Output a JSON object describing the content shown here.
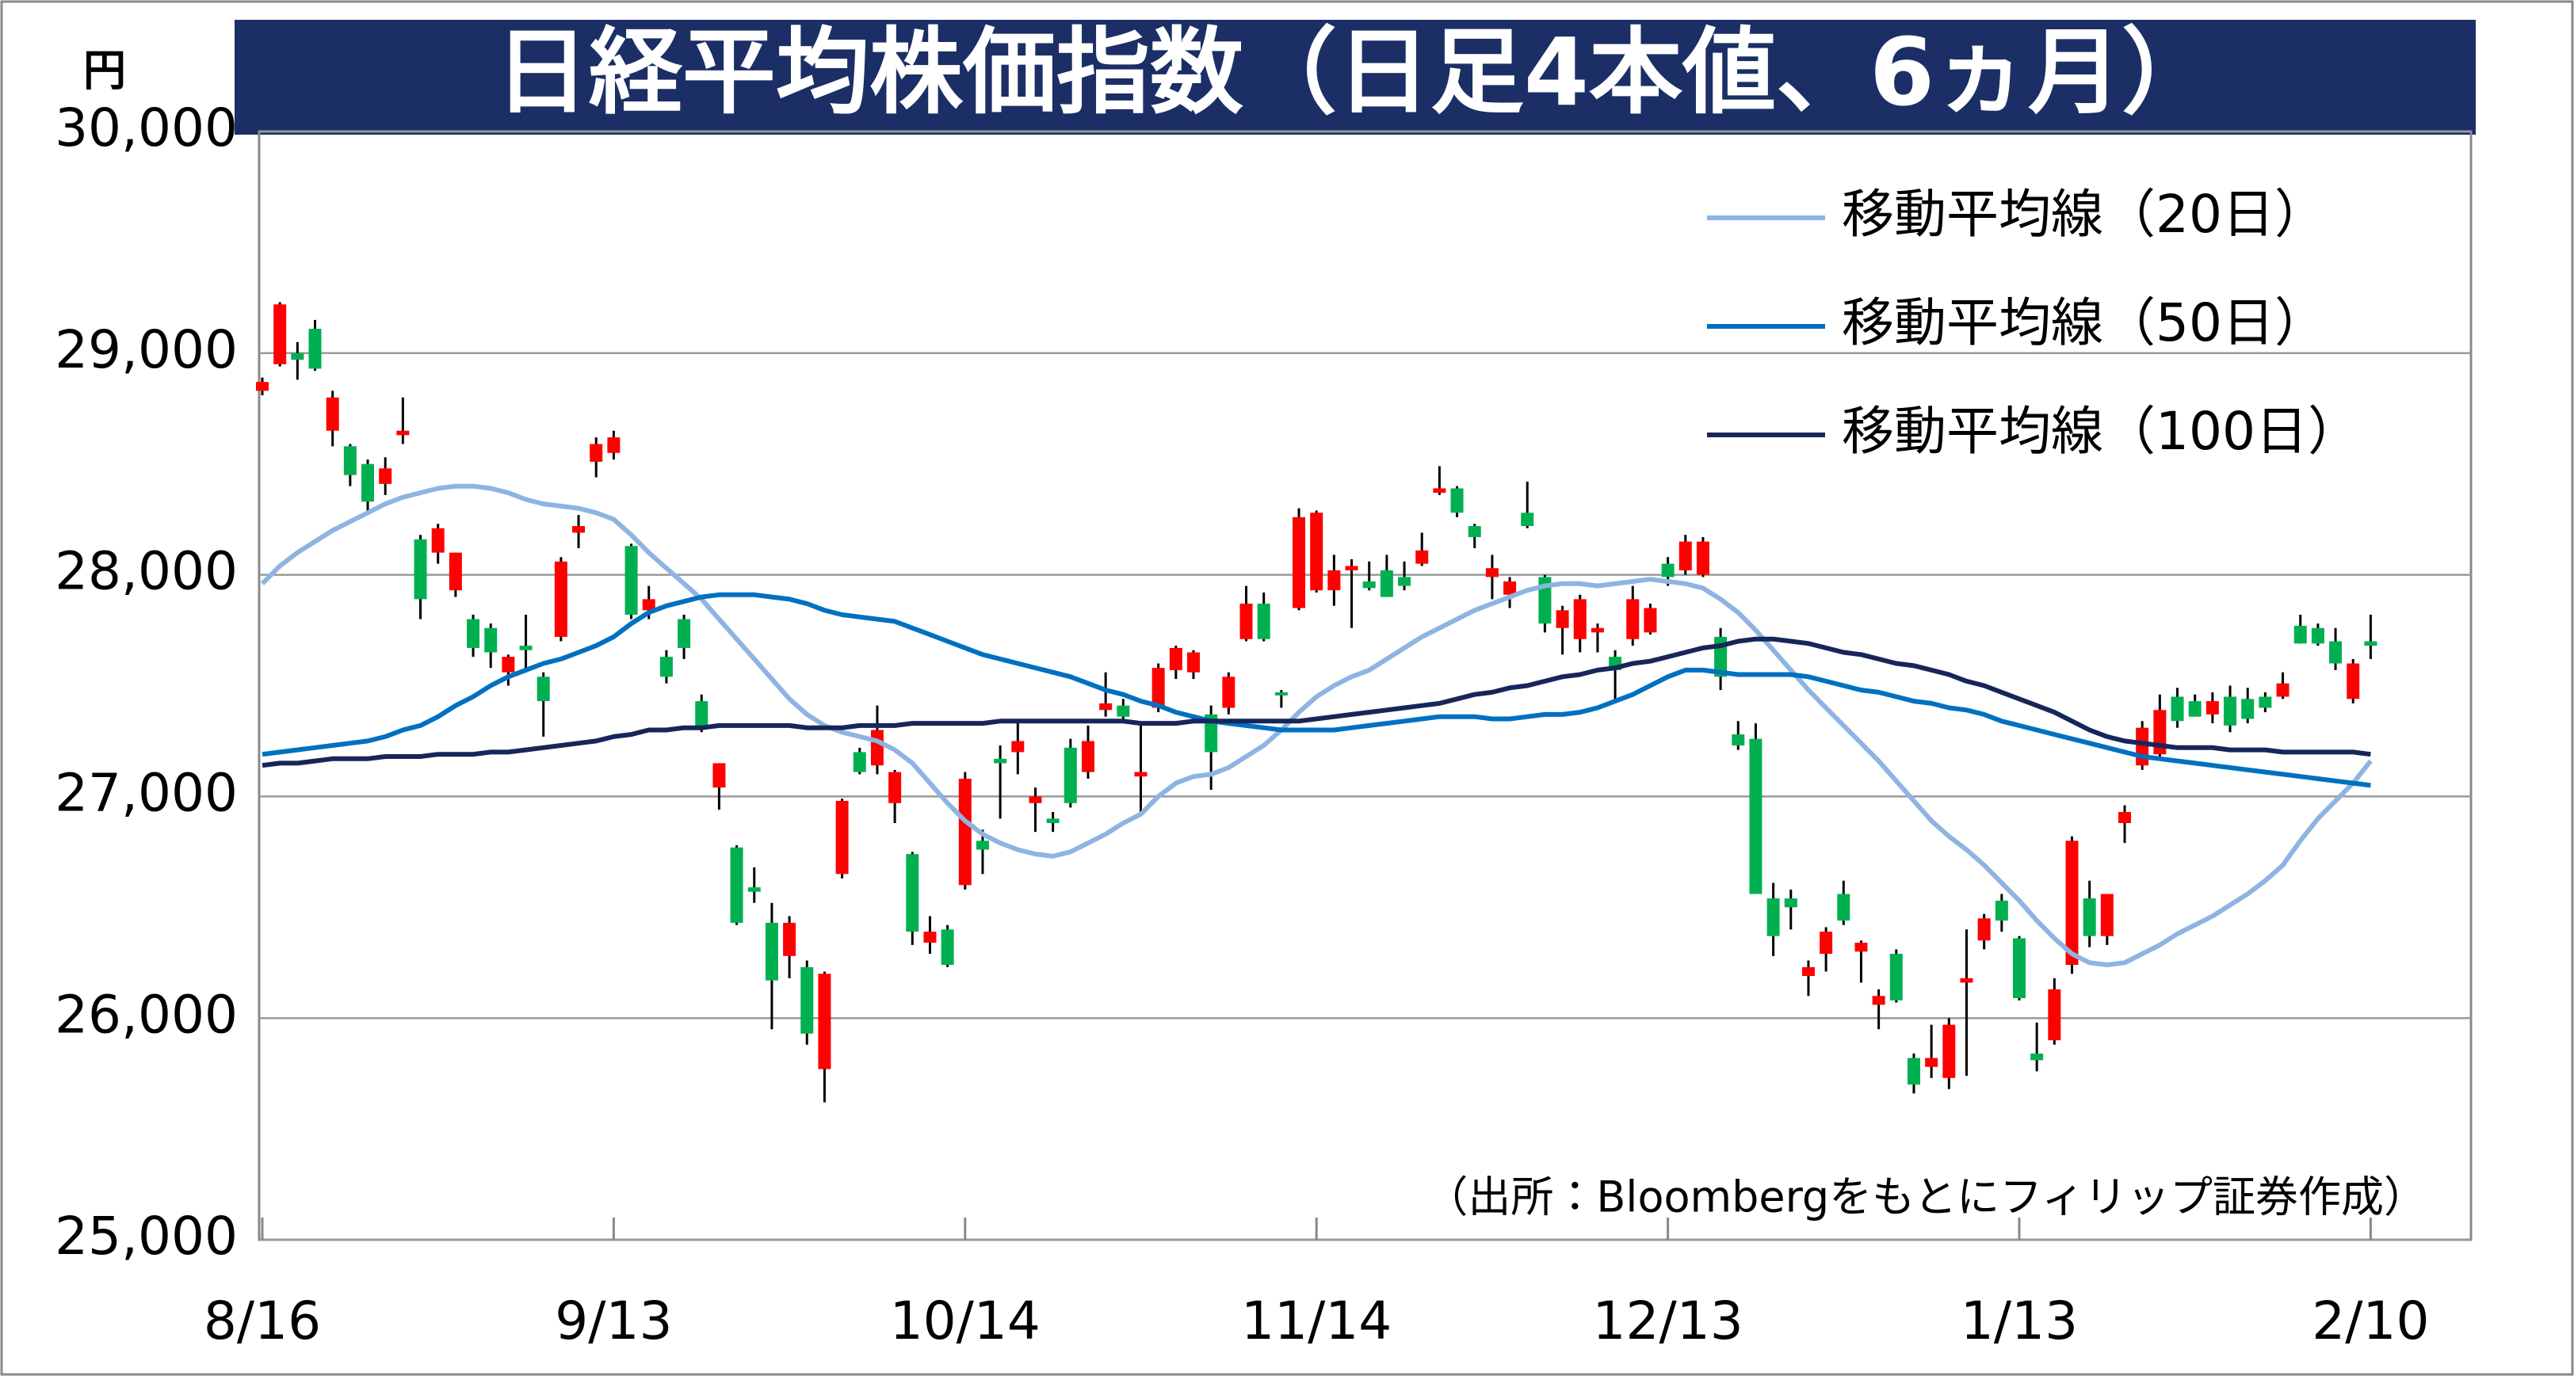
{
  "chart_data": {
    "type": "candlestick",
    "title": "日経平均株価指数（日足4本値、6ヵ月）",
    "y_unit": "円",
    "source": "（出所：Bloombergをもとにフィリップ証券作成）",
    "categories": [
      "8/16",
      null,
      null,
      null,
      null,
      null,
      null,
      null,
      null,
      null,
      null,
      null,
      null,
      null,
      null,
      null,
      null,
      null,
      null,
      null,
      "9/13",
      null,
      null,
      null,
      null,
      null,
      null,
      null,
      null,
      null,
      null,
      null,
      null,
      null,
      null,
      null,
      null,
      null,
      null,
      null,
      "10/14",
      null,
      null,
      null,
      null,
      null,
      null,
      null,
      null,
      null,
      null,
      null,
      null,
      null,
      null,
      null,
      null,
      null,
      null,
      null,
      "11/14",
      null,
      null,
      null,
      null,
      null,
      null,
      null,
      null,
      null,
      null,
      null,
      null,
      null,
      null,
      null,
      null,
      null,
      null,
      null,
      "12/13",
      null,
      null,
      null,
      null,
      null,
      null,
      null,
      null,
      null,
      null,
      null,
      null,
      null,
      null,
      null,
      null,
      null,
      null,
      null,
      "1/13",
      null,
      null,
      null,
      null,
      null,
      null,
      null,
      null,
      null,
      null,
      null,
      null,
      null,
      null,
      null,
      null,
      null,
      null,
      null,
      "2/10"
    ],
    "open": [
      28830,
      28950,
      29000,
      29110,
      28650,
      28580,
      28500,
      28410,
      28630,
      28160,
      28100,
      27930,
      27800,
      27760,
      27560,
      27680,
      27540,
      27720,
      28190,
      28510,
      28550,
      28130,
      27840,
      27630,
      27800,
      27430,
      27040,
      26770,
      26590,
      26430,
      26280,
      26230,
      25770,
      26650,
      27200,
      27140,
      26970,
      26740,
      26340,
      26400,
      26600,
      26800,
      27170,
      27200,
      26970,
      26900,
      27220,
      27110,
      27390,
      27410,
      27090,
      27400,
      27570,
      27560,
      27370,
      27400,
      27710,
      27870,
      27470,
      27850,
      27930,
      27930,
      28020,
      27970,
      28020,
      27990,
      28050,
      28370,
      28390,
      28220,
      27990,
      27910,
      28280,
      27990,
      27760,
      27710,
      27740,
      27630,
      27710,
      27740,
      28050,
      28020,
      28000,
      27720,
      27280,
      27260,
      26540,
      26540,
      26190,
      26290,
      26560,
      26300,
      26060,
      26290,
      25820,
      25780,
      25730,
      26160,
      26350,
      26530,
      26360,
      25840,
      25900,
      26240,
      26540,
      26370,
      26880,
      27140,
      27190,
      27450,
      27430,
      27370,
      27450,
      27440,
      27450,
      27450,
      27770,
      27760,
      27700,
      27440,
      27700
    ],
    "high": [
      28890,
      29230,
      29050,
      29150,
      28830,
      28590,
      28520,
      28530,
      28800,
      28180,
      28230,
      28100,
      27820,
      27780,
      27640,
      27820,
      27560,
      28080,
      28270,
      28620,
      28650,
      28140,
      27950,
      27660,
      27820,
      27460,
      27150,
      26780,
      26680,
      26520,
      26460,
      26260,
      26210,
      26990,
      27220,
      27410,
      27120,
      26750,
      26460,
      26420,
      27110,
      26850,
      27230,
      27350,
      27040,
      26930,
      27260,
      27320,
      27560,
      27440,
      27330,
      27600,
      27680,
      27660,
      27410,
      27560,
      27950,
      27920,
      27480,
      28300,
      28290,
      28090,
      28070,
      28060,
      28090,
      28060,
      28190,
      28490,
      28400,
      28230,
      28090,
      27990,
      28420,
      28000,
      27860,
      27910,
      27780,
      27660,
      27950,
      27870,
      28080,
      28180,
      28170,
      27760,
      27340,
      27330,
      26610,
      26580,
      26260,
      26410,
      26620,
      26350,
      26130,
      26310,
      25840,
      25970,
      26000,
      26400,
      26470,
      26560,
      26370,
      25980,
      26180,
      26820,
      26620,
      26560,
      26960,
      27340,
      27460,
      27490,
      27460,
      27470,
      27500,
      27490,
      27470,
      27560,
      27820,
      27780,
      27760,
      27620,
      27820
    ],
    "low": [
      28810,
      28940,
      28880,
      28920,
      28580,
      28400,
      28280,
      28360,
      28590,
      27800,
      28050,
      27900,
      27630,
      27580,
      27500,
      27560,
      27270,
      27700,
      28120,
      28440,
      28520,
      27800,
      27800,
      27510,
      27620,
      27290,
      26940,
      26420,
      26520,
      25950,
      26180,
      25880,
      25620,
      26630,
      27100,
      27100,
      26880,
      26330,
      26290,
      26230,
      26580,
      26650,
      26900,
      27100,
      26840,
      26840,
      26950,
      27080,
      27360,
      27330,
      26920,
      27380,
      27530,
      27530,
      27030,
      27370,
      27700,
      27700,
      27400,
      27840,
      27920,
      27860,
      27760,
      27930,
      27900,
      27930,
      28040,
      28360,
      28260,
      28120,
      27890,
      27850,
      28210,
      27740,
      27640,
      27650,
      27650,
      27420,
      27680,
      27730,
      27950,
      28000,
      27990,
      27480,
      27210,
      26560,
      26280,
      26400,
      26100,
      26210,
      26420,
      26160,
      25950,
      26070,
      25660,
      25730,
      25680,
      25740,
      26310,
      26390,
      26080,
      25760,
      25880,
      26200,
      26320,
      26330,
      26790,
      27120,
      27170,
      27310,
      27360,
      27330,
      27290,
      27330,
      27380,
      27440,
      27690,
      27680,
      27570,
      27420,
      27620
    ],
    "close": [
      28870,
      29220,
      28970,
      28930,
      28800,
      28450,
      28330,
      28480,
      28650,
      27890,
      28210,
      28100,
      27670,
      27650,
      27630,
      27660,
      27430,
      28060,
      28220,
      28590,
      28620,
      27820,
      27890,
      27540,
      27670,
      27310,
      27150,
      26430,
      26570,
      26170,
      26430,
      25930,
      26200,
      26980,
      27110,
      27300,
      27110,
      26390,
      26390,
      26240,
      27080,
      26760,
      27150,
      27250,
      27000,
      26880,
      26970,
      27250,
      27420,
      27360,
      27110,
      27580,
      27670,
      27650,
      27200,
      27540,
      27870,
      27710,
      27460,
      28260,
      28280,
      28020,
      28040,
      27940,
      27900,
      27950,
      28110,
      28390,
      28280,
      28170,
      28030,
      27970,
      28220,
      27780,
      27840,
      27890,
      27760,
      27570,
      27890,
      27850,
      27990,
      28150,
      28150,
      27540,
      27230,
      26560,
      26370,
      26500,
      26230,
      26390,
      26440,
      26340,
      26100,
      26080,
      25700,
      25820,
      25970,
      26180,
      26450,
      26440,
      26090,
      25810,
      26130,
      26800,
      26370,
      26560,
      26930,
      27310,
      27390,
      27340,
      27360,
      27430,
      27320,
      27350,
      27400,
      27510,
      27690,
      27690,
      27600,
      27600,
      27680
    ],
    "up_color": "#ff0000",
    "down_color": "#00b050",
    "series": [
      {
        "name": "移動平均線（20日）",
        "color": "#8db4e2",
        "values": [
          27960,
          28040,
          28100,
          28150,
          28200,
          28240,
          28280,
          28320,
          28350,
          28370,
          28390,
          28400,
          28400,
          28390,
          28370,
          28340,
          28320,
          28310,
          28300,
          28280,
          28250,
          28180,
          28100,
          28030,
          27960,
          27890,
          27800,
          27710,
          27620,
          27530,
          27440,
          27370,
          27320,
          27290,
          27270,
          27250,
          27210,
          27150,
          27060,
          26970,
          26890,
          26830,
          26790,
          26760,
          26740,
          26730,
          26750,
          26790,
          26830,
          26880,
          26920,
          27000,
          27060,
          27090,
          27100,
          27130,
          27180,
          27230,
          27300,
          27380,
          27450,
          27500,
          27540,
          27570,
          27620,
          27670,
          27720,
          27760,
          27800,
          27840,
          27870,
          27900,
          27930,
          27950,
          27960,
          27960,
          27950,
          27960,
          27970,
          27980,
          27970,
          27960,
          27940,
          27890,
          27830,
          27750,
          27660,
          27570,
          27480,
          27400,
          27320,
          27240,
          27160,
          27070,
          26980,
          26890,
          26820,
          26760,
          26690,
          26610,
          26530,
          26440,
          26360,
          26290,
          26250,
          26240,
          26250,
          26290,
          26330,
          26380,
          26420,
          26460,
          26510,
          26560,
          26620,
          26690,
          26800,
          26900,
          26980,
          27060,
          27160
        ]
      },
      {
        "name": "移動平均線（50日）",
        "color": "#0070c0",
        "values": [
          27190,
          27200,
          27210,
          27220,
          27230,
          27240,
          27250,
          27270,
          27300,
          27320,
          27360,
          27410,
          27450,
          27500,
          27540,
          27570,
          27600,
          27620,
          27650,
          27680,
          27720,
          27780,
          27830,
          27860,
          27880,
          27900,
          27910,
          27910,
          27910,
          27900,
          27890,
          27870,
          27840,
          27820,
          27810,
          27800,
          27790,
          27760,
          27730,
          27700,
          27670,
          27640,
          27620,
          27600,
          27580,
          27560,
          27540,
          27510,
          27480,
          27460,
          27430,
          27410,
          27380,
          27360,
          27340,
          27330,
          27320,
          27310,
          27300,
          27300,
          27300,
          27300,
          27310,
          27320,
          27330,
          27340,
          27350,
          27360,
          27360,
          27360,
          27350,
          27350,
          27360,
          27370,
          27370,
          27380,
          27400,
          27430,
          27460,
          27500,
          27540,
          27570,
          27570,
          27560,
          27550,
          27550,
          27550,
          27550,
          27540,
          27520,
          27500,
          27480,
          27470,
          27450,
          27430,
          27420,
          27400,
          27390,
          27370,
          27340,
          27320,
          27300,
          27280,
          27260,
          27240,
          27220,
          27200,
          27180,
          27170,
          27160,
          27150,
          27140,
          27130,
          27120,
          27110,
          27100,
          27090,
          27080,
          27070,
          27060,
          27050
        ]
      },
      {
        "name": "移動平均線（100日）",
        "color": "#17265a",
        "values": [
          27140,
          27150,
          27150,
          27160,
          27170,
          27170,
          27170,
          27180,
          27180,
          27180,
          27190,
          27190,
          27190,
          27200,
          27200,
          27210,
          27220,
          27230,
          27240,
          27250,
          27270,
          27280,
          27300,
          27300,
          27310,
          27310,
          27320,
          27320,
          27320,
          27320,
          27320,
          27310,
          27310,
          27310,
          27320,
          27320,
          27320,
          27330,
          27330,
          27330,
          27330,
          27330,
          27340,
          27340,
          27340,
          27340,
          27340,
          27340,
          27340,
          27340,
          27330,
          27330,
          27330,
          27340,
          27340,
          27340,
          27340,
          27340,
          27340,
          27340,
          27350,
          27360,
          27370,
          27380,
          27390,
          27400,
          27410,
          27420,
          27440,
          27460,
          27470,
          27490,
          27500,
          27520,
          27540,
          27550,
          27570,
          27580,
          27600,
          27610,
          27630,
          27650,
          27670,
          27680,
          27700,
          27710,
          27710,
          27700,
          27690,
          27670,
          27650,
          27640,
          27620,
          27600,
          27590,
          27570,
          27550,
          27520,
          27500,
          27470,
          27440,
          27410,
          27380,
          27340,
          27300,
          27270,
          27250,
          27240,
          27230,
          27220,
          27220,
          27220,
          27210,
          27210,
          27210,
          27200,
          27200,
          27200,
          27200,
          27200,
          27190
        ]
      }
    ],
    "ylim": [
      25000,
      30000
    ],
    "yticks": [
      {
        "value": 25000,
        "label": "25,000"
      },
      {
        "value": 26000,
        "label": "26,000"
      },
      {
        "value": 27000,
        "label": "27,000"
      },
      {
        "value": 28000,
        "label": "28,000"
      },
      {
        "value": 29000,
        "label": "29,000"
      },
      {
        "value": 30000,
        "label": "30,000"
      }
    ],
    "grid": true,
    "legend": "top-right"
  }
}
